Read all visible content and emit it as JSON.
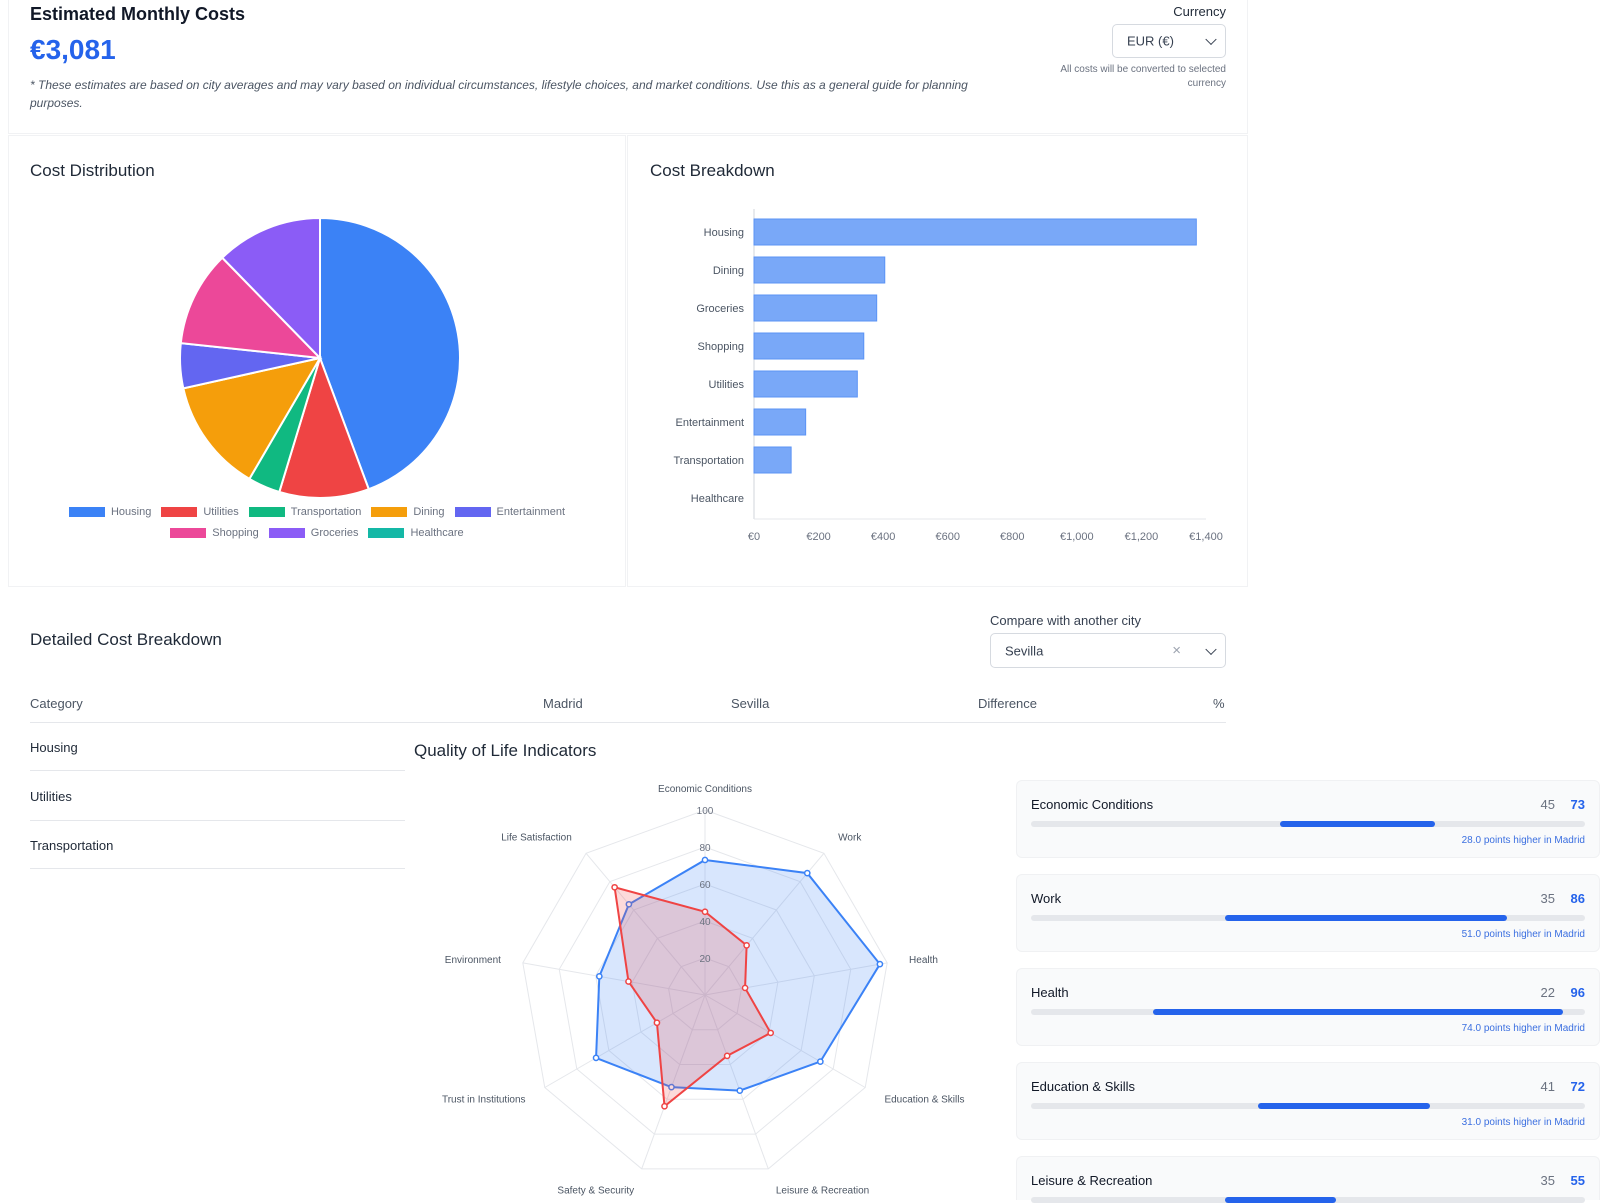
{
  "header": {
    "title": "Estimated Monthly Costs",
    "total": "€3,081",
    "disclaimer": "* These estimates are based on city averages and may vary based on individual circumstances, lifestyle choices, and market conditions. Use this as a general guide for planning purposes.",
    "currency_label": "Currency",
    "currency_value": "EUR (€)",
    "currency_note": "All costs will be converted to selected currency"
  },
  "pie": {
    "title": "Cost Distribution",
    "chart_data": {
      "type": "pie",
      "title": "Cost Distribution",
      "labels": [
        "Housing",
        "Utilities",
        "Transportation",
        "Dining",
        "Entertainment",
        "Shopping",
        "Groceries",
        "Healthcare"
      ],
      "values": [
        1370,
        320,
        115,
        405,
        160,
        340,
        380,
        0
      ],
      "colors": [
        "#3b82f6",
        "#ef4444",
        "#10b981",
        "#f59e0b",
        "#6366f1",
        "#ec4899",
        "#8b5cf6",
        "#14b8a6"
      ],
      "legend_position": "bottom"
    }
  },
  "bar": {
    "title": "Cost Breakdown",
    "chart_data": {
      "type": "bar",
      "orientation": "horizontal",
      "title": "Cost Breakdown",
      "categories": [
        "Housing",
        "Dining",
        "Groceries",
        "Shopping",
        "Utilities",
        "Entertainment",
        "Transportation",
        "Healthcare"
      ],
      "values": [
        1370,
        405,
        380,
        340,
        320,
        160,
        115,
        0
      ],
      "xlim": [
        0,
        1400
      ],
      "ticks": [
        "€0",
        "€200",
        "€400",
        "€600",
        "€800",
        "€1,000",
        "€1,200",
        "€1,400"
      ],
      "color": "#79a8f8"
    }
  },
  "detail": {
    "title": "Detailed Cost Breakdown",
    "compare_label": "Compare with another city",
    "compare_value": "Sevilla",
    "headers": [
      "Category",
      "Madrid",
      "Sevilla",
      "Difference",
      "%"
    ],
    "rows": [
      "Housing",
      "Utilities",
      "Transportation"
    ]
  },
  "qol": {
    "title": "Quality of Life Indicators",
    "chart_data": {
      "type": "radar",
      "axes": [
        "Economic Conditions",
        "Work",
        "Health",
        "Education & Skills",
        "Leisure & Recreation",
        "Safety & Security",
        "Trust in Institutions",
        "Environment",
        "Life Satisfaction"
      ],
      "rmax": 100,
      "ticks": [
        "20",
        "40",
        "60",
        "80",
        "100"
      ],
      "series": [
        {
          "name": "Madrid",
          "values": [
            73,
            86,
            96,
            72,
            55,
            53,
            68,
            58,
            64
          ],
          "color": "#3b82f6"
        },
        {
          "name": "Sevilla",
          "values": [
            45,
            35,
            22,
            41,
            35,
            64,
            30,
            42,
            76
          ],
          "color": "#ef4444"
        }
      ]
    },
    "items": [
      {
        "name": "Economic Conditions",
        "a": "45",
        "b": "73",
        "from": 45,
        "to": 73,
        "note": "28.0 points higher in Madrid"
      },
      {
        "name": "Work",
        "a": "35",
        "b": "86",
        "from": 35,
        "to": 86,
        "note": "51.0 points higher in Madrid"
      },
      {
        "name": "Health",
        "a": "22",
        "b": "96",
        "from": 22,
        "to": 96,
        "note": "74.0 points higher in Madrid"
      },
      {
        "name": "Education & Skills",
        "a": "41",
        "b": "72",
        "from": 41,
        "to": 72,
        "note": "31.0 points higher in Madrid"
      },
      {
        "name": "Leisure & Recreation",
        "a": "35",
        "b": "55",
        "from": 35,
        "to": 55,
        "note": ""
      }
    ]
  }
}
